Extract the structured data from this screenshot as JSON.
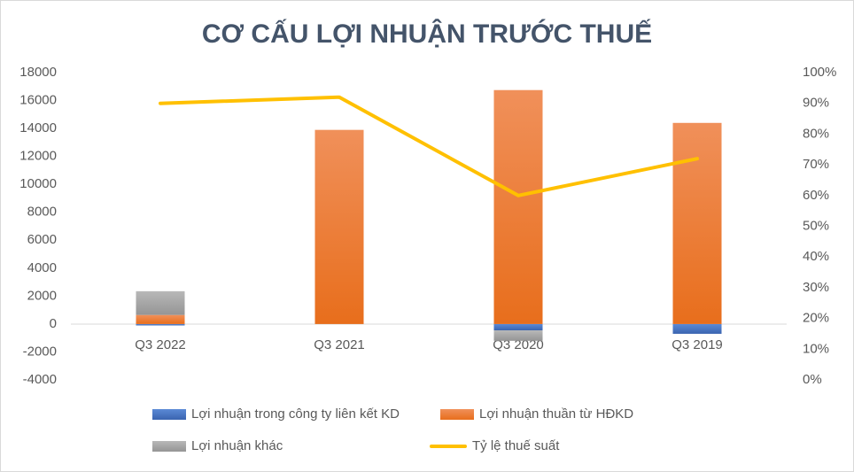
{
  "chart_data": {
    "type": "bar",
    "title": "CƠ CẤU LỢI NHUẬN TRƯỚC THUẾ",
    "categories": [
      "Q3 2022",
      "Q3 2021",
      "Q3 2020",
      "Q3 2019"
    ],
    "series": [
      {
        "name": "Lợi nhuận trong công ty liên kết KD",
        "color": "#4472c4",
        "values": [
          -100,
          0,
          -450,
          -700
        ]
      },
      {
        "name": "Lợi nhuận thuần từ HĐKD",
        "color": "#ed7d31",
        "values": [
          650,
          13900,
          16750,
          14400
        ]
      },
      {
        "name": "Lợi nhuận khác",
        "color": "#a5a5a5",
        "values": [
          1700,
          0,
          -750,
          0
        ]
      },
      {
        "name": "Tỷ lệ thuế suất",
        "color": "#ffc000",
        "type": "line",
        "axis": "y2",
        "values": [
          90,
          92,
          60,
          72
        ]
      }
    ],
    "ylim": [
      -4000,
      18000
    ],
    "yticks": [
      -4000,
      -2000,
      0,
      2000,
      4000,
      6000,
      8000,
      10000,
      12000,
      14000,
      16000,
      18000
    ],
    "y2lim": [
      0,
      100
    ],
    "y2ticks": [
      {
        "value": 0,
        "label": "0%"
      },
      {
        "value": 10,
        "label": "10%"
      },
      {
        "value": 20,
        "label": "20%"
      },
      {
        "value": 30,
        "label": "30%"
      },
      {
        "value": 40,
        "label": "40%"
      },
      {
        "value": 50,
        "label": "50%"
      },
      {
        "value": 60,
        "label": "60%"
      },
      {
        "value": 70,
        "label": "70%"
      },
      {
        "value": 80,
        "label": "80%"
      },
      {
        "value": 90,
        "label": "90%"
      },
      {
        "value": 100,
        "label": "100%"
      }
    ],
    "stacked": true,
    "grid": false
  }
}
